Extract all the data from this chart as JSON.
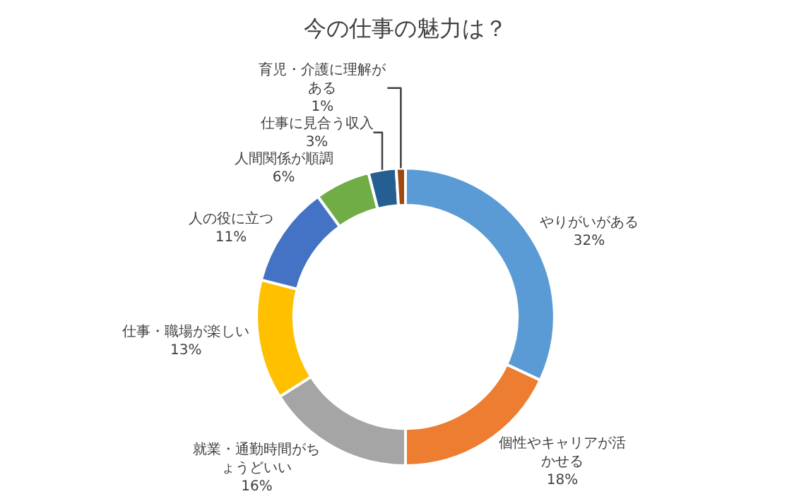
{
  "chart_data": {
    "type": "donut",
    "title": "今の仕事の魅力は？",
    "categories": [
      "やりがいがある",
      "個性やキャリアが活かせる",
      "就業・通勤時間がちょうどいい",
      "仕事・職場が楽しい",
      "人の役に立つ",
      "人間関係が順調",
      "仕事に見合う収入",
      "育児・介護に理解がある"
    ],
    "values": [
      32,
      18,
      16,
      13,
      11,
      6,
      3,
      1
    ],
    "value_labels": [
      "32%",
      "18%",
      "16%",
      "13%",
      "11%",
      "6%",
      "3%",
      "1%"
    ],
    "colors": [
      "#5b9bd5",
      "#ed7d31",
      "#a5a5a5",
      "#ffc000",
      "#4472c4",
      "#70ad47",
      "#255e91",
      "#9e480e"
    ]
  }
}
